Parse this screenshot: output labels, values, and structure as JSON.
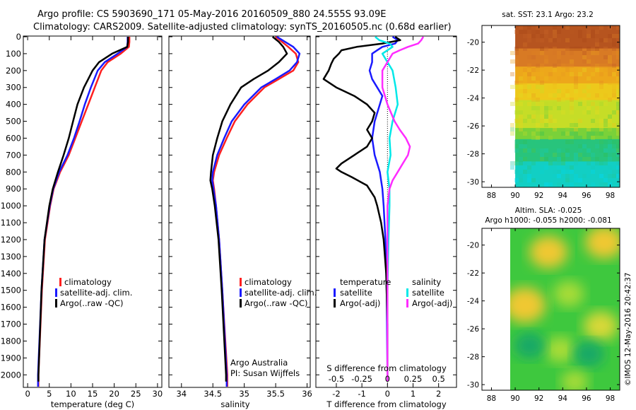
{
  "header": {
    "line1": "Argo profile: CS 5903690_171 05-May-2016 20160509_880 24.555S 93.09E",
    "line2": "Climatology: CARS2009. Satellite-adjusted climatology: synTS_20160505.nc (0.68d earlier)"
  },
  "footer_stamp": "©IMOS 12-May-2016 20:42:37",
  "colors": {
    "climatology": "#ff2020",
    "satellite": "#1a1aff",
    "argo": "#000000",
    "sal_satellite": "#00e8e8",
    "sal_argo": "#ff2cff"
  },
  "chart_data": [
    {
      "type": "line",
      "panel": "temperature",
      "xlabel": "temperature (deg C)",
      "xlim": [
        -1,
        31
      ],
      "xticks": [
        0,
        5,
        10,
        15,
        20,
        25,
        30
      ],
      "ylim": [
        2070,
        0
      ],
      "yticks": [
        0,
        100,
        200,
        300,
        400,
        500,
        600,
        700,
        800,
        900,
        1000,
        1100,
        1200,
        1300,
        1400,
        1500,
        1600,
        1700,
        1800,
        1900,
        2000
      ],
      "legend": [
        "climatology",
        "satellite-adj. clim.",
        "Argo(..raw -QC)"
      ],
      "legend_position": "lower-center",
      "series": [
        {
          "name": "climatology",
          "color": "climatology",
          "depth": [
            0,
            30,
            60,
            100,
            150,
            200,
            300,
            400,
            500,
            600,
            700,
            800,
            900,
            1000,
            1200,
            1500,
            2000,
            2070
          ],
          "values": [
            23.5,
            23.5,
            23.4,
            21.5,
            18.5,
            17.0,
            15.5,
            14.0,
            12.5,
            11.0,
            9.5,
            7.5,
            6.0,
            5.2,
            4.0,
            3.3,
            2.5,
            2.5
          ]
        },
        {
          "name": "satellite-adj. clim.",
          "color": "satellite",
          "depth": [
            0,
            30,
            60,
            100,
            150,
            200,
            300,
            400,
            500,
            600,
            700,
            800,
            900,
            1000,
            1200,
            1500,
            2000,
            2070
          ],
          "values": [
            23.1,
            23.1,
            23.0,
            20.8,
            17.8,
            16.2,
            14.6,
            13.2,
            12.0,
            10.7,
            9.2,
            7.3,
            5.9,
            5.1,
            3.9,
            3.2,
            2.4,
            2.4
          ]
        },
        {
          "name": "Argo(..raw -QC)",
          "color": "argo",
          "depth": [
            0,
            30,
            60,
            100,
            150,
            200,
            250,
            300,
            400,
            500,
            600,
            700,
            800,
            900,
            1000,
            1200,
            1500,
            2000,
            2040
          ],
          "values": [
            23.2,
            23.2,
            23.0,
            19.5,
            16.5,
            15.0,
            14.0,
            13.0,
            11.5,
            10.5,
            9.5,
            8.3,
            7.0,
            5.8,
            5.0,
            3.9,
            3.2,
            2.5,
            2.5
          ]
        }
      ]
    },
    {
      "type": "line",
      "panel": "salinity",
      "xlabel": "salinity",
      "xlim": [
        33.8,
        36.05
      ],
      "xticks": [
        34,
        34.5,
        35,
        35.5,
        36
      ],
      "xtick_labels": [
        "34",
        "34.5",
        "35",
        "35.5",
        "36"
      ],
      "ylim": [
        2070,
        0
      ],
      "legend": [
        "climatology",
        "satellite-adj. clim.",
        "Argo(..raw -QC)"
      ],
      "legend_position": "lower-center",
      "annotation": [
        "Argo Australia",
        "PI: Susan Wijffels"
      ],
      "series": [
        {
          "name": "climatology",
          "color": "climatology",
          "depth": [
            0,
            30,
            60,
            100,
            150,
            200,
            250,
            300,
            400,
            500,
            600,
            700,
            800,
            850,
            900,
            1000,
            1200,
            1500,
            2000,
            2070
          ],
          "values": [
            35.5,
            35.6,
            35.7,
            35.82,
            35.86,
            35.78,
            35.55,
            35.32,
            35.05,
            34.85,
            34.72,
            34.6,
            34.52,
            34.5,
            34.52,
            34.55,
            34.6,
            34.65,
            34.73,
            34.73
          ]
        },
        {
          "name": "satellite-adj. clim.",
          "color": "satellite",
          "depth": [
            0,
            30,
            60,
            100,
            150,
            200,
            250,
            300,
            400,
            500,
            600,
            700,
            800,
            850,
            900,
            1000,
            1200,
            1500,
            2000,
            2070
          ],
          "values": [
            35.52,
            35.65,
            35.78,
            35.88,
            35.84,
            35.72,
            35.5,
            35.27,
            35.0,
            34.8,
            34.68,
            34.57,
            34.5,
            34.49,
            34.51,
            34.55,
            34.6,
            34.65,
            34.72,
            34.72
          ]
        },
        {
          "name": "Argo(..raw -QC)",
          "color": "argo",
          "depth": [
            0,
            30,
            60,
            100,
            150,
            200,
            250,
            300,
            400,
            500,
            600,
            700,
            800,
            850,
            900,
            1000,
            1200,
            1500,
            2000,
            2040
          ],
          "values": [
            35.45,
            35.55,
            35.62,
            35.68,
            35.55,
            35.38,
            35.15,
            34.95,
            34.78,
            34.65,
            34.57,
            34.5,
            34.47,
            34.46,
            34.49,
            34.53,
            34.59,
            34.64,
            34.71,
            34.71
          ]
        }
      ]
    },
    {
      "type": "line",
      "panel": "difference",
      "xlabel": "T difference from climatology",
      "xlabel_top": "S difference from climatology",
      "xlim": [
        -2.8,
        2.7
      ],
      "xticks": [
        -2,
        -1,
        0,
        1,
        2
      ],
      "s_ticks": [
        -0.5,
        -0.25,
        0,
        0.25,
        0.5
      ],
      "s_tick_labels": [
        "-0.5",
        "-0.25",
        "0",
        "0.25",
        "0.5"
      ],
      "s_to_t_scale": 4,
      "ylim": [
        2070,
        0
      ],
      "zero_line": "dotted",
      "legend_title_left": "temperature",
      "legend_title_right": "salinity",
      "legend": [
        "satellite",
        "Argo(-adj)",
        "satellite",
        "Argo(-adj)"
      ],
      "series": [
        {
          "name": "satellite",
          "quantity": "temperature",
          "color": "satellite",
          "depth": [
            0,
            20,
            40,
            60,
            80,
            100,
            150,
            200,
            250,
            300,
            350,
            400,
            500,
            600,
            700,
            800,
            900,
            1000,
            1200,
            1500,
            2000,
            2040
          ],
          "values": [
            0.2,
            0.4,
            0.3,
            -0.2,
            -0.4,
            -0.6,
            -0.6,
            -0.7,
            -0.6,
            -0.4,
            -0.2,
            -0.3,
            -0.5,
            -0.6,
            -0.5,
            -0.3,
            -0.2,
            -0.15,
            -0.08,
            -0.03,
            0.0,
            0.0
          ]
        },
        {
          "name": "Argo(-adj)",
          "quantity": "temperature",
          "color": "argo",
          "depth": [
            0,
            20,
            40,
            60,
            80,
            100,
            130,
            160,
            200,
            250,
            300,
            350,
            400,
            450,
            500,
            550,
            600,
            650,
            700,
            750,
            780,
            800,
            830,
            880,
            950,
            1000,
            1100,
            1200,
            1400,
            1700,
            2000,
            2040
          ],
          "values": [
            0.3,
            0.5,
            -0.2,
            -1.2,
            -1.8,
            -1.9,
            -2.1,
            -2.2,
            -2.3,
            -2.5,
            -2.0,
            -1.3,
            -0.8,
            -0.5,
            -0.6,
            -0.8,
            -0.6,
            -0.8,
            -1.3,
            -1.8,
            -2.0,
            -1.8,
            -1.4,
            -0.8,
            -0.5,
            -0.4,
            -0.25,
            -0.15,
            -0.05,
            0.0,
            0.0,
            0.0
          ]
        },
        {
          "name": "satellite",
          "quantity": "salinity",
          "color": "sal_satellite",
          "depth": [
            0,
            20,
            40,
            60,
            80,
            100,
            150,
            200,
            300,
            400,
            500,
            600,
            700,
            800,
            900,
            1000,
            1200,
            1500,
            2000,
            2040
          ],
          "values": [
            -0.12,
            -0.08,
            0.02,
            0.05,
            0.0,
            -0.05,
            0.0,
            0.05,
            0.08,
            0.1,
            0.05,
            0.02,
            0.03,
            0.0,
            0.02,
            0.02,
            0.01,
            0.0,
            0.0,
            0.0
          ]
        },
        {
          "name": "Argo(-adj)",
          "quantity": "salinity",
          "color": "sal_argo",
          "depth": [
            0,
            20,
            40,
            60,
            80,
            100,
            150,
            200,
            300,
            400,
            500,
            550,
            600,
            650,
            700,
            750,
            800,
            850,
            900,
            1000,
            1200,
            1500,
            2000,
            2040
          ],
          "values": [
            0.35,
            0.33,
            0.3,
            0.2,
            0.12,
            0.05,
            0.0,
            -0.05,
            -0.05,
            0.0,
            0.07,
            0.12,
            0.18,
            0.22,
            0.2,
            0.15,
            0.1,
            0.05,
            0.02,
            0.0,
            0.0,
            0.0,
            0.0,
            0.0
          ]
        }
      ]
    },
    {
      "type": "heatmap",
      "panel": "sst_map",
      "title": "sat. SST: 23.1  Argo: 23.2",
      "xticks": [
        88,
        90,
        92,
        94,
        96,
        98
      ],
      "yticks": [
        -20,
        -22,
        -24,
        -26,
        -28,
        -30
      ],
      "xlim": [
        87.2,
        98.8
      ],
      "ylim": [
        -30.4,
        -18.8
      ],
      "data_extent": {
        "lon": [
          90,
          98.8
        ],
        "lat": [
          -30.4,
          -18.8
        ]
      },
      "value_range": [
        20.5,
        26.5
      ],
      "bands": [
        {
          "lat": [
            -18.8,
            -20.5
          ],
          "value": 26.2
        },
        {
          "lat": [
            -20.5,
            -21.8
          ],
          "value": 25.4
        },
        {
          "lat": [
            -21.8,
            -23.0
          ],
          "value": 24.6
        },
        {
          "lat": [
            -23.0,
            -24.2
          ],
          "value": 24.0
        },
        {
          "lat": [
            -24.2,
            -26.2
          ],
          "value": 23.3
        },
        {
          "lat": [
            -26.2,
            -27.0
          ],
          "value": 22.7
        },
        {
          "lat": [
            -27.0,
            -28.6
          ],
          "value": 21.8
        },
        {
          "lat": [
            -28.6,
            -30.4
          ],
          "value": 21.0
        }
      ]
    },
    {
      "type": "heatmap",
      "panel": "sla_map",
      "title_line1": "Altim. SLA: -0.025",
      "title_line2": "Argo h1000: -0.055 h2000: -0.081",
      "xticks": [
        88,
        90,
        92,
        94,
        96,
        98
      ],
      "yticks": [
        -20,
        -22,
        -24,
        -26,
        -28,
        -30
      ],
      "xlim": [
        87.2,
        98.8
      ],
      "ylim": [
        -30.4,
        -18.8
      ],
      "data_extent": {
        "lon": [
          90,
          98.8
        ],
        "lat": [
          -30.4,
          -18.8
        ]
      },
      "value_range": [
        -0.1,
        0.1
      ],
      "blobs": [
        {
          "lon": 90.8,
          "lat": -24.3,
          "value": 0.06
        },
        {
          "lon": 92.8,
          "lat": -20.5,
          "value": 0.05
        },
        {
          "lon": 97.5,
          "lat": -19.8,
          "value": 0.05
        },
        {
          "lon": 94.5,
          "lat": -23.5,
          "value": 0.03
        },
        {
          "lon": 97.2,
          "lat": -25.8,
          "value": 0.04
        },
        {
          "lon": 93.8,
          "lat": -27.5,
          "value": 0.03
        },
        {
          "lon": 91.2,
          "lat": -27.2,
          "value": -0.03
        },
        {
          "lon": 96.2,
          "lat": -27.8,
          "value": -0.03
        },
        {
          "lon": 95.0,
          "lat": -29.8,
          "value": 0.02
        }
      ]
    }
  ]
}
